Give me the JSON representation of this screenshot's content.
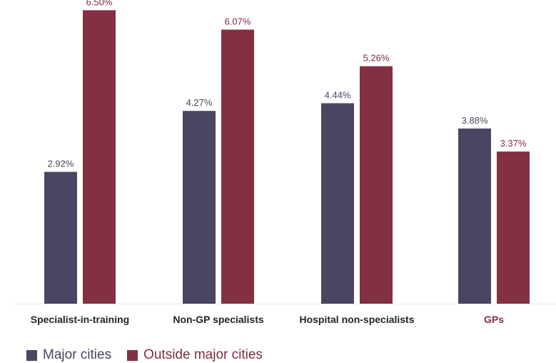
{
  "chart_data": {
    "type": "bar",
    "title": "",
    "xlabel": "",
    "ylabel": "",
    "ylim": [
      0,
      6.6
    ],
    "grid": false,
    "legend_position": "bottom-left",
    "categories": [
      "Specialist-in-training",
      "Non-GP specialists",
      "Hospital non-specialists",
      "GPs"
    ],
    "category_label_colors": [
      "#2b2024",
      "#2b2024",
      "#2b2024",
      "#7f2d40"
    ],
    "series": [
      {
        "name": "Major cities",
        "color": "#484662",
        "values": [
          2.92,
          4.27,
          4.44,
          3.88
        ],
        "labels": [
          "2.92%",
          "4.27%",
          "4.44%",
          "3.88%"
        ]
      },
      {
        "name": "Outside major cities",
        "color": "#833043",
        "values": [
          6.5,
          6.07,
          5.26,
          3.37
        ],
        "labels": [
          "6.50%",
          "6.07%",
          "5.26%",
          "3.37%"
        ]
      }
    ],
    "data_label_colors": [
      "#47445f",
      "#7f2d40"
    ]
  }
}
